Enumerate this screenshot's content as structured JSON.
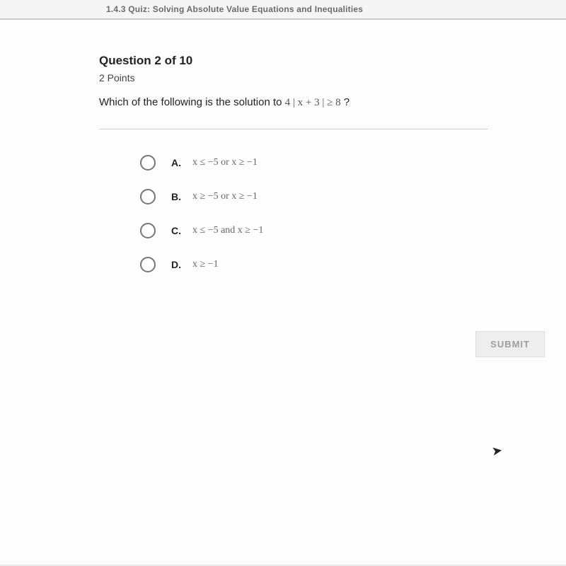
{
  "header": {
    "breadcrumb": "1.4.3 Quiz: Solving Absolute Value Equations and Inequalities"
  },
  "question": {
    "number_label": "Question 2 of 10",
    "points_label": "2 Points",
    "prompt_prefix": "Which of the following is the solution to ",
    "prompt_math": "4 | x + 3 | ≥ 8",
    "prompt_suffix": " ?"
  },
  "options": [
    {
      "letter": "A.",
      "text": "x ≤ −5 or x ≥ −1"
    },
    {
      "letter": "B.",
      "text": "x ≥ −5 or x ≥ −1"
    },
    {
      "letter": "C.",
      "text": "x ≤ −5 and x ≥ −1"
    },
    {
      "letter": "D.",
      "text": "x ≥ −1"
    }
  ],
  "buttons": {
    "submit": "SUBMIT"
  },
  "colors": {
    "page_bg": "#fdfdfd",
    "body_bg": "#e8eaec",
    "text_primary": "#222222",
    "text_muted": "#666666",
    "radio_border": "#777777",
    "divider": "#d0d0d0",
    "submit_bg": "#eeeeee",
    "submit_text": "#9e9e9e"
  }
}
